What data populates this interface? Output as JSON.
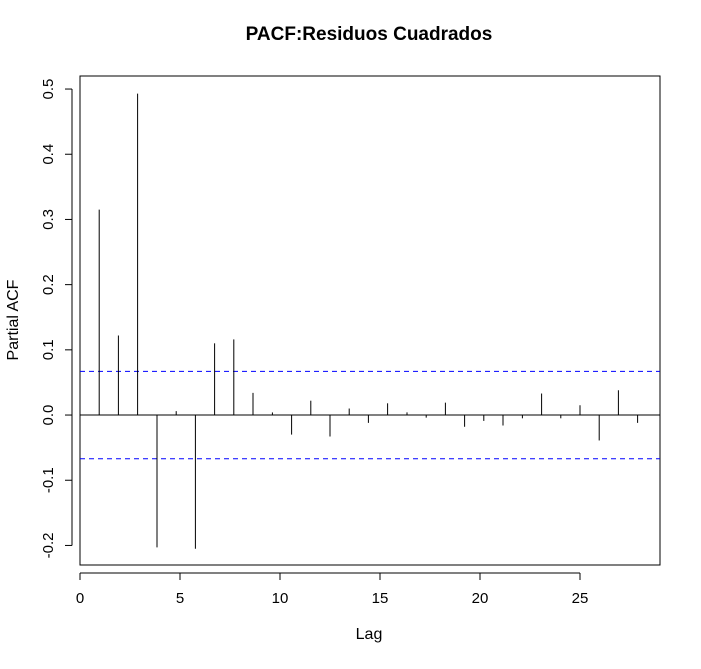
{
  "chart_data": {
    "type": "bar",
    "title": "PACF:Residuos Cuadrados",
    "xlabel": "Lag",
    "ylabel": "Partial ACF",
    "xlim": [
      0,
      29
    ],
    "ylim": [
      -0.23,
      0.52
    ],
    "x_ticks": [
      0,
      5,
      10,
      15,
      20,
      25
    ],
    "x_tick_labels": [
      "0",
      "5",
      "10",
      "15",
      "20",
      "25"
    ],
    "y_ticks": [
      -0.2,
      -0.1,
      0.0,
      0.1,
      0.2,
      0.3,
      0.4,
      0.5
    ],
    "y_tick_labels": [
      "-0.2",
      "-0.1",
      "0.0",
      "0.1",
      "0.2",
      "0.3",
      "0.4",
      "0.5"
    ],
    "confidence_bound": 0.067,
    "colors": {
      "spikes": "#000000",
      "confidence_lines": "#0000ff",
      "zero_line": "#000000",
      "frame": "#000000"
    },
    "grid": false,
    "legend": "none",
    "x": [
      0.96,
      1.92,
      2.88,
      3.85,
      4.81,
      5.77,
      6.73,
      7.69,
      8.65,
      9.62,
      10.58,
      11.54,
      12.5,
      13.46,
      14.42,
      15.38,
      16.35,
      17.31,
      18.27,
      19.23,
      20.19,
      21.15,
      22.12,
      23.08,
      24.04,
      25.0,
      25.96,
      26.92,
      27.88
    ],
    "values": [
      0.315,
      0.122,
      0.493,
      -0.203,
      0.006,
      -0.205,
      0.11,
      0.116,
      0.034,
      0.004,
      -0.03,
      0.022,
      -0.033,
      0.01,
      -0.012,
      0.018,
      0.004,
      -0.004,
      0.019,
      -0.018,
      -0.009,
      -0.016,
      -0.005,
      0.033,
      -0.005,
      0.015,
      -0.039,
      0.038,
      -0.012
    ]
  }
}
